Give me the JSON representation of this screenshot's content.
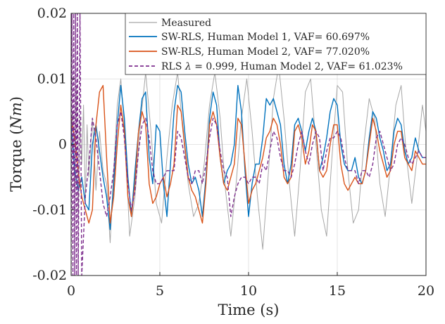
{
  "chart_data": {
    "type": "line",
    "title": "",
    "xlabel": "Time (s)",
    "ylabel_prefix": "Torque (",
    "ylabel_unit": "Nm",
    "ylabel_suffix": ")",
    "xlim": [
      0,
      20
    ],
    "ylim": [
      -0.02,
      0.02
    ],
    "xticks": [
      0,
      5,
      10,
      15,
      20
    ],
    "xtick_labels": [
      "0",
      "5",
      "10",
      "15",
      "20"
    ],
    "yticks": [
      -0.02,
      -0.01,
      0,
      0.01,
      0.02
    ],
    "ytick_labels": [
      "-0.02",
      "-0.01",
      "0",
      "0.01",
      "0.02"
    ],
    "grid": true,
    "legend_position": "top-right",
    "series": [
      {
        "name": "Measured",
        "legend_text": "Measured",
        "color": "#a6a6a6",
        "dash": "solid",
        "x": [
          0,
          0.1,
          0.2,
          0.3,
          0.4,
          0.5,
          0.6,
          0.7,
          0.8,
          0.9,
          1.0,
          1.2,
          1.4,
          1.6,
          1.8,
          2.0,
          2.2,
          2.4,
          2.6,
          2.8,
          3.0,
          3.3,
          3.6,
          3.9,
          4.2,
          4.5,
          4.8,
          5.1,
          5.4,
          5.7,
          6.0,
          6.3,
          6.6,
          6.9,
          7.2,
          7.5,
          7.8,
          8.1,
          8.4,
          8.7,
          9.0,
          9.3,
          9.6,
          9.9,
          10.2,
          10.5,
          10.8,
          11.1,
          11.4,
          11.7,
          12.0,
          12.3,
          12.6,
          12.9,
          13.2,
          13.5,
          13.8,
          14.1,
          14.4,
          14.7,
          15.0,
          15.3,
          15.6,
          15.9,
          16.2,
          16.5,
          16.8,
          17.1,
          17.4,
          17.7,
          18.0,
          18.3,
          18.6,
          18.9,
          19.2,
          19.5,
          19.8,
          20.0
        ],
        "y": [
          0.002,
          0.005,
          -0.008,
          0.009,
          -0.012,
          0.004,
          -0.003,
          0.006,
          -0.009,
          0.003,
          -0.005,
          0.004,
          -0.007,
          0.002,
          -0.004,
          -0.006,
          -0.015,
          -0.004,
          0.006,
          0.01,
          0.003,
          -0.014,
          -0.008,
          0.003,
          0.011,
          0.002,
          -0.009,
          -0.012,
          -0.002,
          0.006,
          0.011,
          0.002,
          -0.006,
          -0.011,
          -0.009,
          -0.003,
          0.006,
          0.011,
          0.004,
          -0.007,
          -0.014,
          -0.006,
          0.004,
          0.01,
          0.002,
          -0.008,
          -0.016,
          -0.005,
          0.007,
          0.012,
          0.004,
          -0.006,
          -0.014,
          -0.004,
          0.008,
          0.01,
          0.0,
          -0.01,
          -0.014,
          -0.002,
          0.009,
          0.008,
          -0.004,
          -0.012,
          -0.01,
          0.0,
          0.007,
          0.004,
          -0.006,
          -0.011,
          -0.003,
          0.006,
          0.009,
          -0.002,
          -0.009,
          -0.002,
          0.006,
          0.002
        ]
      },
      {
        "name": "SW-RLS, Human Model 1",
        "legend_text": "SW-RLS, Human Model 1, VAF= 60.697%",
        "color": "#0072bd",
        "dash": "solid",
        "x": [
          0,
          0.2,
          0.4,
          0.6,
          0.8,
          1.0,
          1.2,
          1.4,
          1.6,
          1.8,
          2.0,
          2.2,
          2.4,
          2.6,
          2.8,
          3.0,
          3.2,
          3.4,
          3.6,
          3.8,
          4.0,
          4.2,
          4.4,
          4.6,
          4.8,
          5.0,
          5.2,
          5.4,
          5.6,
          5.8,
          6.0,
          6.2,
          6.4,
          6.6,
          6.8,
          7.0,
          7.2,
          7.4,
          7.6,
          7.8,
          8.0,
          8.2,
          8.4,
          8.6,
          8.8,
          9.0,
          9.2,
          9.4,
          9.6,
          9.8,
          10.0,
          10.2,
          10.4,
          10.6,
          10.8,
          11.0,
          11.2,
          11.4,
          11.6,
          11.8,
          12.0,
          12.2,
          12.4,
          12.6,
          12.8,
          13.0,
          13.2,
          13.4,
          13.6,
          13.8,
          14.0,
          14.2,
          14.4,
          14.6,
          14.8,
          15.0,
          15.2,
          15.4,
          15.6,
          15.8,
          16.0,
          16.2,
          16.4,
          16.6,
          16.8,
          17.0,
          17.2,
          17.4,
          17.6,
          17.8,
          18.0,
          18.2,
          18.4,
          18.6,
          18.8,
          19.0,
          19.2,
          19.4,
          19.6,
          19.8,
          20.0
        ],
        "y": [
          0.003,
          -0.004,
          -0.007,
          -0.005,
          -0.009,
          -0.01,
          0.0,
          0.003,
          -0.001,
          -0.005,
          -0.008,
          -0.013,
          -0.006,
          0.003,
          0.009,
          0.004,
          -0.005,
          -0.011,
          -0.004,
          0.002,
          0.007,
          0.008,
          -0.002,
          -0.006,
          0.003,
          0.002,
          -0.006,
          -0.011,
          -0.003,
          0.005,
          0.009,
          0.008,
          0.002,
          -0.003,
          -0.006,
          -0.005,
          -0.007,
          -0.011,
          -0.005,
          0.004,
          0.008,
          0.006,
          -0.002,
          -0.006,
          -0.004,
          -0.003,
          0.0,
          0.009,
          0.005,
          -0.004,
          -0.011,
          -0.006,
          -0.003,
          -0.003,
          0.001,
          0.007,
          0.006,
          0.007,
          0.005,
          0.003,
          -0.003,
          -0.006,
          -0.003,
          0.003,
          0.004,
          0.002,
          -0.001,
          0.002,
          0.004,
          0.002,
          -0.004,
          -0.002,
          0.001,
          0.005,
          0.007,
          0.006,
          0.0,
          -0.003,
          -0.004,
          -0.004,
          -0.002,
          -0.005,
          -0.006,
          -0.004,
          0.001,
          0.005,
          0.004,
          0.001,
          -0.001,
          -0.004,
          -0.003,
          0.002,
          0.004,
          0.003,
          -0.001,
          -0.003,
          -0.002,
          0.001,
          -0.001,
          -0.002,
          -0.002
        ]
      },
      {
        "name": "SW-RLS, Human Model 2",
        "legend_text": "SW-RLS, Human Model 2, VAF= 77.020%",
        "color": "#d95319",
        "dash": "solid",
        "x": [
          0,
          0.2,
          0.4,
          0.6,
          0.8,
          1.0,
          1.2,
          1.4,
          1.6,
          1.8,
          2.0,
          2.2,
          2.4,
          2.6,
          2.8,
          3.0,
          3.2,
          3.4,
          3.6,
          3.8,
          4.0,
          4.2,
          4.4,
          4.6,
          4.8,
          5.0,
          5.2,
          5.4,
          5.6,
          5.8,
          6.0,
          6.2,
          6.4,
          6.6,
          6.8,
          7.0,
          7.2,
          7.4,
          7.6,
          7.8,
          8.0,
          8.2,
          8.4,
          8.6,
          8.8,
          9.0,
          9.2,
          9.4,
          9.6,
          9.8,
          10.0,
          10.2,
          10.4,
          10.6,
          10.8,
          11.0,
          11.2,
          11.4,
          11.6,
          11.8,
          12.0,
          12.2,
          12.4,
          12.6,
          12.8,
          13.0,
          13.2,
          13.4,
          13.6,
          13.8,
          14.0,
          14.2,
          14.4,
          14.6,
          14.8,
          15.0,
          15.2,
          15.4,
          15.6,
          15.8,
          16.0,
          16.2,
          16.4,
          16.6,
          16.8,
          17.0,
          17.2,
          17.4,
          17.6,
          17.8,
          18.0,
          18.2,
          18.4,
          18.6,
          18.8,
          19.0,
          19.2,
          19.4,
          19.6,
          19.8,
          20.0
        ],
        "y": [
          0.004,
          0.001,
          -0.004,
          -0.008,
          -0.01,
          -0.012,
          -0.01,
          0.003,
          0.008,
          0.009,
          -0.002,
          -0.012,
          -0.008,
          0.0,
          0.006,
          0.002,
          -0.008,
          -0.011,
          -0.006,
          0.002,
          0.005,
          0.003,
          -0.006,
          -0.009,
          -0.008,
          -0.006,
          -0.005,
          -0.008,
          -0.006,
          -0.003,
          0.006,
          0.005,
          0.0,
          -0.005,
          -0.007,
          -0.008,
          -0.01,
          -0.012,
          -0.006,
          0.003,
          0.005,
          0.003,
          -0.002,
          -0.006,
          -0.007,
          -0.005,
          -0.003,
          0.004,
          0.003,
          -0.003,
          -0.009,
          -0.007,
          -0.006,
          -0.004,
          -0.002,
          0.001,
          0.002,
          0.004,
          0.003,
          0.0,
          -0.005,
          -0.006,
          -0.005,
          0.002,
          0.003,
          0.001,
          -0.003,
          -0.001,
          0.003,
          0.002,
          -0.004,
          -0.005,
          -0.004,
          0.0,
          0.003,
          0.003,
          -0.003,
          -0.006,
          -0.007,
          -0.006,
          -0.005,
          -0.006,
          -0.006,
          -0.004,
          0.0,
          0.004,
          0.002,
          -0.001,
          -0.003,
          -0.005,
          -0.004,
          0.0,
          0.002,
          0.002,
          -0.002,
          -0.003,
          -0.004,
          -0.001,
          -0.002,
          -0.003,
          -0.003
        ]
      },
      {
        "name": "RLS λ = 0.999, Human Model 2",
        "legend_text_prefix": "RLS ",
        "legend_text_symbol": "λ",
        "legend_text_suffix": " = 0.999, Human Model 2, VAF= 61.023%",
        "color": "#7e2f8e",
        "dash": "dashed",
        "x": [
          0,
          0.05,
          0.1,
          0.15,
          0.2,
          0.25,
          0.3,
          0.35,
          0.4,
          0.5,
          0.6,
          0.8,
          1.0,
          1.2,
          1.4,
          1.6,
          1.8,
          2.0,
          2.2,
          2.4,
          2.6,
          2.8,
          3.0,
          3.2,
          3.4,
          3.6,
          3.8,
          4.0,
          4.2,
          4.4,
          4.6,
          4.8,
          5.0,
          5.2,
          5.4,
          5.6,
          5.8,
          6.0,
          6.2,
          6.4,
          6.6,
          6.8,
          7.0,
          7.2,
          7.4,
          7.6,
          7.8,
          8.0,
          8.2,
          8.4,
          8.6,
          8.8,
          9.0,
          9.2,
          9.4,
          9.6,
          9.8,
          10.0,
          10.2,
          10.4,
          10.6,
          10.8,
          11.0,
          11.2,
          11.4,
          11.6,
          11.8,
          12.0,
          12.2,
          12.4,
          12.6,
          12.8,
          13.0,
          13.2,
          13.4,
          13.6,
          13.8,
          14.0,
          14.2,
          14.4,
          14.6,
          14.8,
          15.0,
          15.2,
          15.4,
          15.6,
          15.8,
          16.0,
          16.2,
          16.4,
          16.6,
          16.8,
          17.0,
          17.2,
          17.4,
          17.6,
          17.8,
          18.0,
          18.2,
          18.4,
          18.6,
          18.8,
          19.0,
          19.2,
          19.4,
          19.6,
          19.8,
          20.0
        ],
        "y": [
          -0.02,
          0.02,
          -0.02,
          0.02,
          -0.02,
          0.02,
          -0.02,
          0.02,
          -0.02,
          0.02,
          -0.02,
          -0.008,
          -0.003,
          0.004,
          0.001,
          -0.004,
          -0.009,
          -0.011,
          -0.008,
          -0.004,
          0.003,
          0.005,
          0.001,
          -0.006,
          -0.01,
          -0.007,
          -0.001,
          0.003,
          0.004,
          0.001,
          -0.004,
          -0.006,
          -0.006,
          -0.005,
          -0.004,
          -0.004,
          -0.004,
          0.002,
          0.001,
          -0.002,
          -0.005,
          -0.006,
          -0.004,
          -0.004,
          -0.006,
          -0.003,
          0.001,
          0.004,
          0.003,
          -0.001,
          -0.004,
          -0.005,
          -0.011,
          -0.008,
          -0.006,
          -0.005,
          -0.005,
          -0.006,
          -0.005,
          -0.005,
          -0.006,
          -0.003,
          -0.004,
          -0.001,
          0.002,
          0.001,
          -0.002,
          -0.004,
          -0.004,
          -0.005,
          -0.003,
          0.0,
          0.002,
          -0.001,
          -0.003,
          0.0,
          0.002,
          0.001,
          -0.004,
          -0.001,
          0.001,
          0.001,
          0.002,
          0.001,
          -0.002,
          -0.004,
          -0.004,
          -0.004,
          -0.006,
          -0.004,
          -0.004,
          -0.005,
          -0.003,
          0.001,
          0.002,
          0.0,
          -0.002,
          -0.004,
          -0.003,
          0.0,
          0.001,
          0.0,
          -0.002,
          -0.003,
          -0.002,
          -0.001,
          -0.002,
          -0.002
        ]
      }
    ]
  }
}
